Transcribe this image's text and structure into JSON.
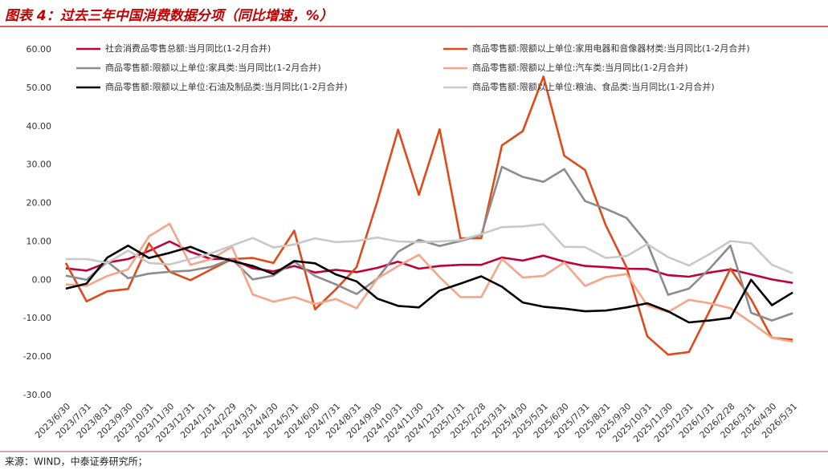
{
  "chart_data": {
    "type": "line",
    "title": "图表 4：过去三年中国消费数据分项（同比增速，%）",
    "source": "来源：WIND，中泰证券研究所；",
    "categories": [
      "2023/6/30",
      "2023/7/31",
      "2023/8/31",
      "2023/9/30",
      "2023/10/31",
      "2023/11/30",
      "2023/12/31",
      "2024/1/31",
      "2024/2/29",
      "2024/3/31",
      "2024/4/30",
      "2024/5/31",
      "2024/6/30",
      "2024/7/31",
      "2024/8/31",
      "2024/9/30",
      "2024/10/31",
      "2024/11/30",
      "2024/12/31",
      "2025/1/31",
      "2025/2/28",
      "2025/3/31",
      "2025/4/30",
      "2025/5/31",
      "2025/6/30",
      "2025/7/31",
      "2025/8/31",
      "2025/9/30",
      "2025/10/31",
      "2025/11/30",
      "2025/12/31",
      "2026/1/31",
      "2026/2/28",
      "2026/3/31",
      "2026/4/30",
      "2026/5/31"
    ],
    "series": [
      {
        "name": "社会消费品零售总额:当月同比(1-2月合并)",
        "color": "#c0003c",
        "values": [
          3.1,
          2.5,
          4.6,
          5.5,
          7.6,
          10.1,
          7.4,
          5.5,
          5.5,
          3.1,
          2.3,
          3.7,
          2.0,
          2.7,
          2.1,
          3.2,
          4.8,
          3.0,
          3.7,
          4.0,
          4.0,
          5.9,
          5.1,
          6.4,
          4.8,
          3.7,
          3.4,
          3.0,
          2.9,
          1.3,
          0.9,
          2.0,
          2.8,
          1.5,
          0.2,
          -0.7
        ]
      },
      {
        "name": "商品零售额:限额以上单位:家用电器和音像器材类:当月同比(1-2月合并)",
        "color": "#e04a1a",
        "values": [
          4.5,
          -5.5,
          -2.9,
          -2.3,
          9.6,
          2.2,
          0.0,
          2.8,
          5.5,
          5.8,
          4.5,
          12.9,
          -7.6,
          -2.4,
          3.4,
          20.5,
          39.2,
          22.2,
          39.3,
          10.9,
          10.9,
          35.1,
          38.8,
          53.0,
          32.4,
          28.7,
          14.3,
          3.3,
          -14.6,
          -19.4,
          -18.7,
          -8.0,
          3.0,
          -5.0,
          -15.0,
          -15.5
        ]
      },
      {
        "name": "商品零售额:限额以上单位:家具类:当月同比(1-2月合并)",
        "color": "#8c8c8c",
        "values": [
          1.2,
          0.1,
          4.8,
          0.5,
          1.7,
          2.2,
          2.5,
          3.5,
          5.5,
          0.2,
          1.2,
          4.8,
          1.1,
          -1.1,
          -3.6,
          0.4,
          7.4,
          10.5,
          8.9,
          10.2,
          11.7,
          29.5,
          26.9,
          25.6,
          28.9,
          20.6,
          18.6,
          16.2,
          9.6,
          -3.8,
          -2.2,
          3.0,
          9.0,
          -8.5,
          -10.5,
          -8.6
        ]
      },
      {
        "name": "商品零售额:限额以上单位:汽车类:当月同比(1-2月合并)",
        "color": "#f4a58a",
        "values": [
          -1.1,
          -1.5,
          1.1,
          2.8,
          11.4,
          14.7,
          4.0,
          5.5,
          8.7,
          -3.7,
          -5.6,
          -4.4,
          -6.2,
          -4.9,
          -7.3,
          0.4,
          3.7,
          6.6,
          0.8,
          -4.4,
          -4.4,
          5.5,
          0.7,
          1.1,
          4.6,
          -1.5,
          0.8,
          1.6,
          -6.6,
          -8.3,
          -5.1,
          -6.0,
          -7.3,
          -11.0,
          -15.0,
          -16.0
        ]
      },
      {
        "name": "商品零售额:限额以上单位:石油及制品类:当月同比(1-2月合并)",
        "color": "#000000",
        "values": [
          -2.2,
          -0.9,
          5.9,
          9.0,
          5.8,
          7.1,
          8.7,
          6.5,
          5.0,
          3.7,
          1.6,
          5.0,
          4.4,
          1.5,
          -0.3,
          -4.8,
          -6.7,
          -7.1,
          -2.7,
          -0.9,
          1.0,
          -1.7,
          -5.8,
          -6.9,
          -7.4,
          -8.1,
          -7.9,
          -7.1,
          -6.0,
          -8.1,
          -11.0,
          -10.5,
          -9.8,
          0.1,
          -6.5,
          -3.2
        ]
      },
      {
        "name": "商品零售额:限额以上单位:粮油、食品类:当月同比(1-2月合并)",
        "color": "#c8c8c8",
        "values": [
          5.5,
          5.5,
          4.5,
          7.7,
          4.5,
          4.1,
          5.5,
          7.0,
          9.0,
          11.0,
          8.5,
          9.3,
          10.9,
          9.9,
          10.2,
          11.1,
          10.1,
          9.9,
          10.1,
          10.4,
          12.0,
          13.8,
          14.0,
          14.6,
          8.7,
          8.6,
          5.8,
          6.3,
          9.4,
          6.0,
          3.8,
          6.8,
          10.2,
          9.6,
          4.0,
          1.8
        ]
      }
    ],
    "ylim": [
      -30,
      60
    ],
    "yticks": [
      {
        "value": -30,
        "label": "-30.00"
      },
      {
        "value": -20,
        "label": "-20.00"
      },
      {
        "value": -10,
        "label": "-10.00"
      },
      {
        "value": 0,
        "label": "0.00"
      },
      {
        "value": 10,
        "label": "10.00"
      },
      {
        "value": 20,
        "label": "20.00"
      },
      {
        "value": 30,
        "label": "30.00"
      },
      {
        "value": 40,
        "label": "40.00"
      },
      {
        "value": 50,
        "label": "50.00"
      },
      {
        "value": 60,
        "label": "60.00"
      }
    ],
    "grid": false
  }
}
